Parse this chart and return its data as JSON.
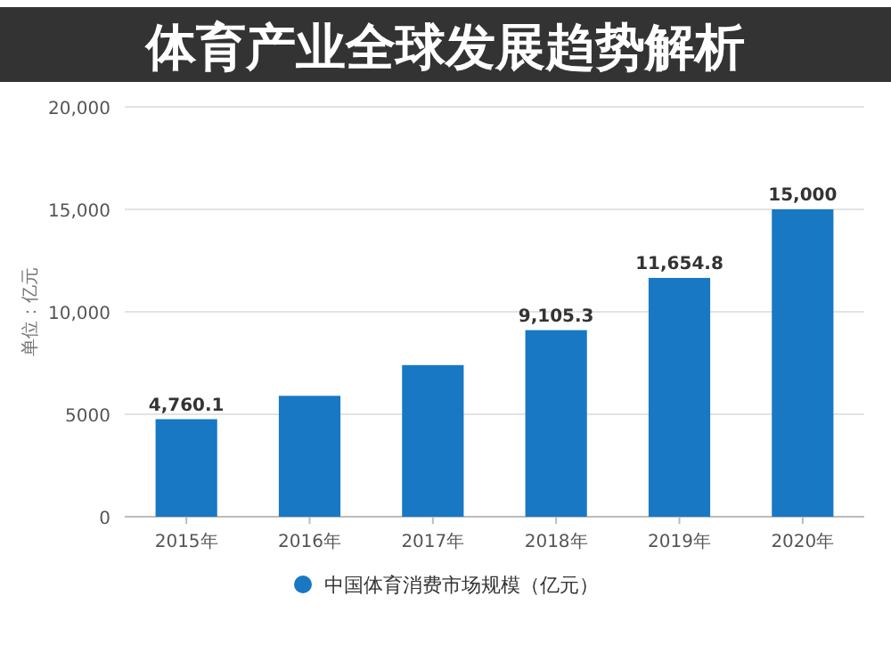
{
  "chart_data": {
    "type": "bar",
    "title": "体育产业全球发展趋势解析",
    "ylabel": "单位：亿元",
    "categories": [
      "2015年",
      "2016年",
      "2017年",
      "2018年",
      "2019年",
      "2020年"
    ],
    "series": [
      {
        "name": "中国体育消费市场规模（亿元）",
        "color": "#1878c4",
        "values": [
          4760.1,
          5900,
          7400,
          9105.3,
          11654.8,
          15000
        ],
        "value_labels": [
          "4,760.1",
          null,
          null,
          "9,105.3",
          "11,654.8",
          "15,000"
        ]
      }
    ],
    "ylim": [
      0,
      20000
    ],
    "yticks": [
      0,
      5000,
      {
        "value": 10000,
        "label": "10,000"
      },
      {
        "value": 15000,
        "label": "15,000"
      },
      {
        "value": 20000,
        "label": "20,000"
      }
    ],
    "grid": "y",
    "legend": "bottom",
    "marker": "circle"
  }
}
